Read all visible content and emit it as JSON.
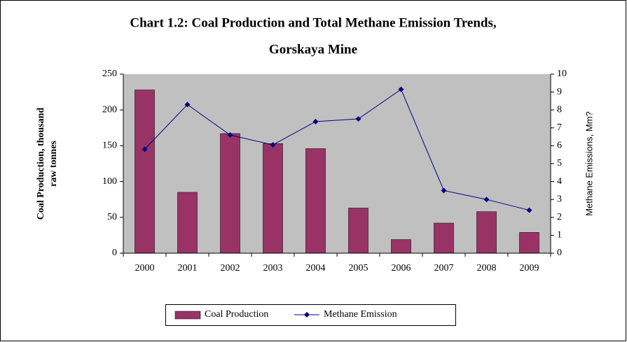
{
  "chart_data": {
    "type": "bar",
    "title": [
      "Chart 1.2: Coal Production and Total Methane Emission Trends,",
      "Gorskaya Mine"
    ],
    "ylabel": [
      "Coal Production, thousand",
      "raw    tonnes"
    ],
    "y2label": "Methane Emissions, Mm?",
    "categories": [
      "2000",
      "2001",
      "2002",
      "2003",
      "2004",
      "2005",
      "2006",
      "2007",
      "2008",
      "2009"
    ],
    "series": [
      {
        "name": "Coal Production",
        "type": "bar",
        "color": "#993366",
        "values": [
          228,
          85,
          167,
          153,
          146,
          63,
          19,
          42,
          58,
          29
        ]
      },
      {
        "name": "Methane Emission",
        "type": "line",
        "axis": "y2",
        "color": "#000080",
        "values": [
          5.8,
          8.3,
          6.6,
          6.05,
          7.35,
          7.5,
          9.15,
          3.5,
          3.0,
          2.4
        ]
      }
    ],
    "ylim": [
      0,
      250
    ],
    "yticks": [
      0,
      50,
      100,
      150,
      200,
      250
    ],
    "y2lim": [
      0,
      10
    ],
    "y2ticks": [
      0,
      1,
      2,
      3,
      4,
      5,
      6,
      7,
      8,
      9,
      10
    ],
    "legend": "bottom",
    "plot_background": "#c0c0c0"
  }
}
